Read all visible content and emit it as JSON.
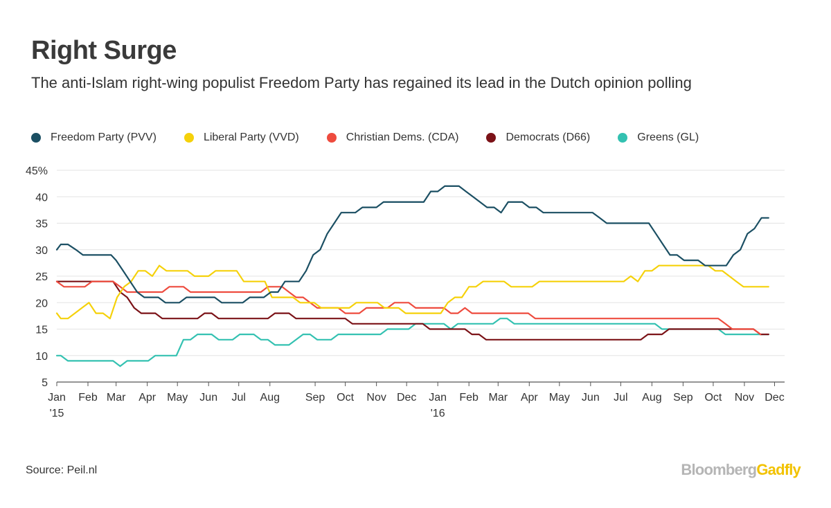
{
  "title": "Right Surge",
  "subtitle": "The anti-Islam right-wing populist Freedom Party has regained its lead in the Dutch opinion polling",
  "source": "Source: Peil.nl",
  "brand": {
    "part1": "Bloomberg",
    "part2": "Gadfly"
  },
  "chart_data": {
    "type": "line",
    "title": "Right Surge",
    "xlabel": "",
    "ylabel": "",
    "ylim": [
      5,
      45
    ],
    "yticks": [
      5,
      10,
      15,
      20,
      25,
      30,
      35,
      40,
      45
    ],
    "ytick_labels": [
      "5",
      "10",
      "15",
      "20",
      "25",
      "30",
      "35",
      "40",
      "45%"
    ],
    "xlim": [
      "2015-01-01",
      "2016-12-25"
    ],
    "xticks": [
      {
        "date": "2015-01-01",
        "label": "Jan",
        "sub": "'15"
      },
      {
        "date": "2015-02-01",
        "label": "Feb",
        "sub": ""
      },
      {
        "date": "2015-03-01",
        "label": "Mar",
        "sub": ""
      },
      {
        "date": "2015-04-01",
        "label": "Apr",
        "sub": ""
      },
      {
        "date": "2015-05-01",
        "label": "May",
        "sub": ""
      },
      {
        "date": "2015-06-01",
        "label": "Jun",
        "sub": ""
      },
      {
        "date": "2015-07-01",
        "label": "Jul",
        "sub": ""
      },
      {
        "date": "2015-08-01",
        "label": "Aug",
        "sub": ""
      },
      {
        "date": "2015-09-15",
        "label": "Sep",
        "sub": ""
      },
      {
        "date": "2015-10-15",
        "label": "Oct",
        "sub": ""
      },
      {
        "date": "2015-11-15",
        "label": "Nov",
        "sub": ""
      },
      {
        "date": "2015-12-15",
        "label": "Dec",
        "sub": ""
      },
      {
        "date": "2016-01-15",
        "label": "Jan",
        "sub": "'16"
      },
      {
        "date": "2016-02-15",
        "label": "Feb",
        "sub": ""
      },
      {
        "date": "2016-03-15",
        "label": "Mar",
        "sub": ""
      },
      {
        "date": "2016-04-15",
        "label": "Apr",
        "sub": ""
      },
      {
        "date": "2016-05-15",
        "label": "May",
        "sub": ""
      },
      {
        "date": "2016-06-15",
        "label": "Jun",
        "sub": ""
      },
      {
        "date": "2016-07-15",
        "label": "Jul",
        "sub": ""
      },
      {
        "date": "2016-08-15",
        "label": "Aug",
        "sub": ""
      },
      {
        "date": "2016-09-15",
        "label": "Sep",
        "sub": ""
      },
      {
        "date": "2016-10-15",
        "label": "Oct",
        "sub": ""
      },
      {
        "date": "2016-11-15",
        "label": "Nov",
        "sub": ""
      },
      {
        "date": "2016-12-15",
        "label": "Dec",
        "sub": ""
      }
    ],
    "grid": true,
    "legend_position": "top-left",
    "series": [
      {
        "name": "Freedom Party (PVV)",
        "color": "#1b4f63",
        "points": [
          [
            "2015-01-01",
            30
          ],
          [
            "2015-01-05",
            31
          ],
          [
            "2015-01-12",
            31
          ],
          [
            "2015-01-20",
            30
          ],
          [
            "2015-01-27",
            29
          ],
          [
            "2015-02-24",
            29
          ],
          [
            "2015-03-01",
            28
          ],
          [
            "2015-03-08",
            26
          ],
          [
            "2015-03-15",
            24
          ],
          [
            "2015-03-22",
            22
          ],
          [
            "2015-03-29",
            21
          ],
          [
            "2015-04-12",
            21
          ],
          [
            "2015-04-19",
            20
          ],
          [
            "2015-05-03",
            20
          ],
          [
            "2015-05-10",
            21
          ],
          [
            "2015-06-07",
            21
          ],
          [
            "2015-06-14",
            20
          ],
          [
            "2015-07-05",
            20
          ],
          [
            "2015-07-12",
            21
          ],
          [
            "2015-07-26",
            21
          ],
          [
            "2015-08-02",
            22
          ],
          [
            "2015-08-09",
            22
          ],
          [
            "2015-08-16",
            24
          ],
          [
            "2015-08-30",
            24
          ],
          [
            "2015-09-06",
            26
          ],
          [
            "2015-09-13",
            29
          ],
          [
            "2015-09-20",
            30
          ],
          [
            "2015-09-27",
            33
          ],
          [
            "2015-10-04",
            35
          ],
          [
            "2015-10-11",
            37
          ],
          [
            "2015-10-25",
            37
          ],
          [
            "2015-11-01",
            38
          ],
          [
            "2015-11-15",
            38
          ],
          [
            "2015-11-22",
            39
          ],
          [
            "2016-01-01",
            39
          ],
          [
            "2016-01-08",
            41
          ],
          [
            "2016-01-15",
            41
          ],
          [
            "2016-01-22",
            42
          ],
          [
            "2016-02-05",
            42
          ],
          [
            "2016-02-12",
            41
          ],
          [
            "2016-02-19",
            40
          ],
          [
            "2016-02-26",
            39
          ],
          [
            "2016-03-04",
            38
          ],
          [
            "2016-03-11",
            38
          ],
          [
            "2016-03-18",
            37
          ],
          [
            "2016-03-25",
            39
          ],
          [
            "2016-04-08",
            39
          ],
          [
            "2016-04-15",
            38
          ],
          [
            "2016-04-22",
            38
          ],
          [
            "2016-04-29",
            37
          ],
          [
            "2016-06-03",
            37
          ],
          [
            "2016-06-17",
            37
          ],
          [
            "2016-06-24",
            36
          ],
          [
            "2016-07-01",
            35
          ],
          [
            "2016-08-12",
            35
          ],
          [
            "2016-08-19",
            33
          ],
          [
            "2016-08-26",
            31
          ],
          [
            "2016-09-02",
            29
          ],
          [
            "2016-09-09",
            29
          ],
          [
            "2016-09-16",
            28
          ],
          [
            "2016-09-30",
            28
          ],
          [
            "2016-10-07",
            27
          ],
          [
            "2016-10-28",
            27
          ],
          [
            "2016-11-04",
            29
          ],
          [
            "2016-11-11",
            30
          ],
          [
            "2016-11-18",
            33
          ],
          [
            "2016-11-25",
            34
          ],
          [
            "2016-12-02",
            36
          ],
          [
            "2016-12-09",
            36
          ]
        ]
      },
      {
        "name": "Liberal Party (VVD)",
        "color": "#f5d10a",
        "points": [
          [
            "2015-01-01",
            18
          ],
          [
            "2015-01-05",
            17
          ],
          [
            "2015-01-12",
            17
          ],
          [
            "2015-01-19",
            18
          ],
          [
            "2015-01-26",
            19
          ],
          [
            "2015-02-02",
            20
          ],
          [
            "2015-02-09",
            18
          ],
          [
            "2015-02-16",
            18
          ],
          [
            "2015-02-23",
            17
          ],
          [
            "2015-03-02",
            21
          ],
          [
            "2015-03-09",
            23
          ],
          [
            "2015-03-16",
            24
          ],
          [
            "2015-03-23",
            26
          ],
          [
            "2015-03-30",
            26
          ],
          [
            "2015-04-06",
            25
          ],
          [
            "2015-04-13",
            27
          ],
          [
            "2015-04-20",
            26
          ],
          [
            "2015-05-11",
            26
          ],
          [
            "2015-05-18",
            25
          ],
          [
            "2015-06-01",
            25
          ],
          [
            "2015-06-08",
            26
          ],
          [
            "2015-06-29",
            26
          ],
          [
            "2015-07-06",
            24
          ],
          [
            "2015-07-27",
            24
          ],
          [
            "2015-08-03",
            21
          ],
          [
            "2015-08-24",
            21
          ],
          [
            "2015-08-31",
            20
          ],
          [
            "2015-09-14",
            20
          ],
          [
            "2015-09-21",
            19
          ],
          [
            "2015-10-19",
            19
          ],
          [
            "2015-10-26",
            20
          ],
          [
            "2015-11-16",
            20
          ],
          [
            "2015-11-23",
            19
          ],
          [
            "2015-12-07",
            19
          ],
          [
            "2015-12-14",
            18
          ],
          [
            "2016-01-18",
            18
          ],
          [
            "2016-01-25",
            20
          ],
          [
            "2016-02-01",
            21
          ],
          [
            "2016-02-08",
            21
          ],
          [
            "2016-02-15",
            23
          ],
          [
            "2016-02-22",
            23
          ],
          [
            "2016-02-29",
            24
          ],
          [
            "2016-03-21",
            24
          ],
          [
            "2016-03-28",
            23
          ],
          [
            "2016-04-18",
            23
          ],
          [
            "2016-04-25",
            24
          ],
          [
            "2016-06-20",
            24
          ],
          [
            "2016-07-18",
            24
          ],
          [
            "2016-07-25",
            25
          ],
          [
            "2016-08-01",
            24
          ],
          [
            "2016-08-08",
            26
          ],
          [
            "2016-08-15",
            26
          ],
          [
            "2016-08-22",
            27
          ],
          [
            "2016-10-10",
            27
          ],
          [
            "2016-10-17",
            26
          ],
          [
            "2016-10-24",
            26
          ],
          [
            "2016-10-31",
            25
          ],
          [
            "2016-11-07",
            24
          ],
          [
            "2016-11-14",
            23
          ],
          [
            "2016-12-09",
            23
          ]
        ]
      },
      {
        "name": "Christian Dems. (CDA)",
        "color": "#ee4b3e",
        "points": [
          [
            "2015-01-01",
            24
          ],
          [
            "2015-01-08",
            23
          ],
          [
            "2015-01-29",
            23
          ],
          [
            "2015-02-05",
            24
          ],
          [
            "2015-02-26",
            24
          ],
          [
            "2015-03-05",
            23
          ],
          [
            "2015-03-12",
            22
          ],
          [
            "2015-03-26",
            22
          ],
          [
            "2015-04-02",
            22
          ],
          [
            "2015-04-16",
            22
          ],
          [
            "2015-04-23",
            23
          ],
          [
            "2015-05-07",
            23
          ],
          [
            "2015-05-14",
            22
          ],
          [
            "2015-06-11",
            22
          ],
          [
            "2015-07-16",
            22
          ],
          [
            "2015-07-23",
            22
          ],
          [
            "2015-07-30",
            23
          ],
          [
            "2015-08-13",
            23
          ],
          [
            "2015-08-20",
            22
          ],
          [
            "2015-08-27",
            21
          ],
          [
            "2015-09-03",
            21
          ],
          [
            "2015-09-10",
            20
          ],
          [
            "2015-09-17",
            19
          ],
          [
            "2015-10-08",
            19
          ],
          [
            "2015-10-15",
            18
          ],
          [
            "2015-10-29",
            18
          ],
          [
            "2015-11-05",
            19
          ],
          [
            "2015-11-26",
            19
          ],
          [
            "2015-12-03",
            20
          ],
          [
            "2015-12-17",
            20
          ],
          [
            "2015-12-24",
            19
          ],
          [
            "2016-01-21",
            19
          ],
          [
            "2016-01-28",
            18
          ],
          [
            "2016-02-04",
            18
          ],
          [
            "2016-02-11",
            19
          ],
          [
            "2016-02-18",
            18
          ],
          [
            "2016-04-14",
            18
          ],
          [
            "2016-04-21",
            17
          ],
          [
            "2016-10-20",
            17
          ],
          [
            "2016-10-27",
            16
          ],
          [
            "2016-11-03",
            15
          ],
          [
            "2016-11-24",
            15
          ],
          [
            "2016-12-01",
            14
          ]
        ]
      },
      {
        "name": "Democrats (D66)",
        "color": "#7b1217",
        "points": [
          [
            "2015-01-01",
            24
          ],
          [
            "2015-02-26",
            24
          ],
          [
            "2015-03-05",
            22
          ],
          [
            "2015-03-12",
            21
          ],
          [
            "2015-03-19",
            19
          ],
          [
            "2015-03-26",
            18
          ],
          [
            "2015-04-09",
            18
          ],
          [
            "2015-04-16",
            17
          ],
          [
            "2015-05-21",
            17
          ],
          [
            "2015-05-28",
            18
          ],
          [
            "2015-06-04",
            18
          ],
          [
            "2015-06-11",
            17
          ],
          [
            "2015-07-30",
            17
          ],
          [
            "2015-08-06",
            18
          ],
          [
            "2015-08-20",
            18
          ],
          [
            "2015-08-27",
            17
          ],
          [
            "2015-10-15",
            17
          ],
          [
            "2015-10-22",
            16
          ],
          [
            "2015-12-31",
            16
          ],
          [
            "2016-01-07",
            15
          ],
          [
            "2016-02-11",
            15
          ],
          [
            "2016-02-18",
            14
          ],
          [
            "2016-02-25",
            14
          ],
          [
            "2016-03-03",
            13
          ],
          [
            "2016-08-04",
            13
          ],
          [
            "2016-08-11",
            14
          ],
          [
            "2016-08-25",
            14
          ],
          [
            "2016-09-01",
            15
          ],
          [
            "2016-11-03",
            15
          ],
          [
            "2016-11-24",
            15
          ],
          [
            "2016-12-01",
            14
          ],
          [
            "2016-12-09",
            14
          ]
        ]
      },
      {
        "name": "Greens (GL)",
        "color": "#33c1b1",
        "points": [
          [
            "2015-01-01",
            10
          ],
          [
            "2015-01-05",
            10
          ],
          [
            "2015-01-12",
            9
          ],
          [
            "2015-02-26",
            9
          ],
          [
            "2015-03-05",
            8
          ],
          [
            "2015-03-12",
            9
          ],
          [
            "2015-04-02",
            9
          ],
          [
            "2015-04-09",
            10
          ],
          [
            "2015-04-30",
            10
          ],
          [
            "2015-05-07",
            13
          ],
          [
            "2015-05-14",
            13
          ],
          [
            "2015-05-21",
            14
          ],
          [
            "2015-06-04",
            14
          ],
          [
            "2015-06-11",
            13
          ],
          [
            "2015-06-25",
            13
          ],
          [
            "2015-07-02",
            14
          ],
          [
            "2015-07-16",
            14
          ],
          [
            "2015-07-23",
            13
          ],
          [
            "2015-07-30",
            13
          ],
          [
            "2015-08-06",
            12
          ],
          [
            "2015-08-20",
            12
          ],
          [
            "2015-08-27",
            13
          ],
          [
            "2015-09-03",
            14
          ],
          [
            "2015-09-10",
            14
          ],
          [
            "2015-09-17",
            13
          ],
          [
            "2015-10-01",
            13
          ],
          [
            "2015-10-08",
            14
          ],
          [
            "2015-11-19",
            14
          ],
          [
            "2015-11-26",
            15
          ],
          [
            "2015-12-17",
            15
          ],
          [
            "2015-12-24",
            16
          ],
          [
            "2016-01-21",
            16
          ],
          [
            "2016-01-28",
            15
          ],
          [
            "2016-02-04",
            16
          ],
          [
            "2016-03-10",
            16
          ],
          [
            "2016-03-17",
            17
          ],
          [
            "2016-03-24",
            17
          ],
          [
            "2016-03-31",
            16
          ],
          [
            "2016-08-18",
            16
          ],
          [
            "2016-08-25",
            15
          ],
          [
            "2016-10-13",
            15
          ],
          [
            "2016-10-20",
            15
          ],
          [
            "2016-10-27",
            14
          ],
          [
            "2016-12-09",
            14
          ]
        ]
      }
    ]
  }
}
